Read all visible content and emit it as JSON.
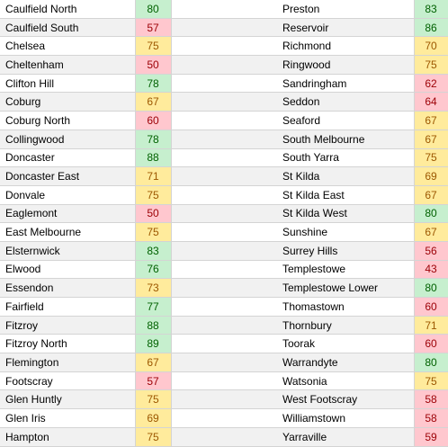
{
  "left": [
    {
      "name": "Caulfield North",
      "score": 80,
      "fill": "#c6efce",
      "ink": "#006100"
    },
    {
      "name": "Caulfield South",
      "score": 57,
      "fill": "#ffc7ce",
      "ink": "#9c0006"
    },
    {
      "name": "Chelsea",
      "score": 75,
      "fill": "#ffeb9c",
      "ink": "#9c5700"
    },
    {
      "name": "Cheltenham",
      "score": 50,
      "fill": "#ffc7ce",
      "ink": "#9c0006"
    },
    {
      "name": "Clifton Hill",
      "score": 78,
      "fill": "#c6efce",
      "ink": "#006100"
    },
    {
      "name": "Coburg",
      "score": 67,
      "fill": "#ffeb9c",
      "ink": "#9c5700"
    },
    {
      "name": "Coburg North",
      "score": 60,
      "fill": "#ffc7ce",
      "ink": "#9c0006"
    },
    {
      "name": "Collingwood",
      "score": 78,
      "fill": "#c6efce",
      "ink": "#006100"
    },
    {
      "name": "Doncaster",
      "score": 88,
      "fill": "#c6efce",
      "ink": "#006100"
    },
    {
      "name": "Doncaster East",
      "score": 71,
      "fill": "#ffeb9c",
      "ink": "#9c5700"
    },
    {
      "name": "Donvale",
      "score": 75,
      "fill": "#ffeb9c",
      "ink": "#9c5700"
    },
    {
      "name": "Eaglemont",
      "score": 50,
      "fill": "#ffc7ce",
      "ink": "#9c0006"
    },
    {
      "name": "East Melbourne",
      "score": 75,
      "fill": "#ffeb9c",
      "ink": "#9c5700"
    },
    {
      "name": "Elsternwick",
      "score": 83,
      "fill": "#c6efce",
      "ink": "#006100"
    },
    {
      "name": "Elwood",
      "score": 76,
      "fill": "#c6efce",
      "ink": "#006100"
    },
    {
      "name": "Essendon",
      "score": 73,
      "fill": "#ffeb9c",
      "ink": "#9c5700"
    },
    {
      "name": "Fairfield",
      "score": 77,
      "fill": "#c6efce",
      "ink": "#006100"
    },
    {
      "name": "Fitzroy",
      "score": 88,
      "fill": "#c6efce",
      "ink": "#006100"
    },
    {
      "name": "Fitzroy North",
      "score": 89,
      "fill": "#c6efce",
      "ink": "#006100"
    },
    {
      "name": "Flemington",
      "score": 67,
      "fill": "#ffeb9c",
      "ink": "#9c5700"
    },
    {
      "name": "Footscray",
      "score": 57,
      "fill": "#ffc7ce",
      "ink": "#9c0006"
    },
    {
      "name": "Glen Huntly",
      "score": 75,
      "fill": "#ffeb9c",
      "ink": "#9c5700"
    },
    {
      "name": "Glen Iris",
      "score": 69,
      "fill": "#ffeb9c",
      "ink": "#9c5700"
    },
    {
      "name": "Hampton",
      "score": 75,
      "fill": "#ffeb9c",
      "ink": "#9c5700"
    }
  ],
  "right": [
    {
      "name": "Preston",
      "score": 83,
      "fill": "#c6efce",
      "ink": "#006100"
    },
    {
      "name": "Reservoir",
      "score": 86,
      "fill": "#c6efce",
      "ink": "#006100"
    },
    {
      "name": "Richmond",
      "score": 70,
      "fill": "#ffeb9c",
      "ink": "#9c5700"
    },
    {
      "name": "Ringwood",
      "score": 75,
      "fill": "#ffeb9c",
      "ink": "#9c5700"
    },
    {
      "name": "Sandringham",
      "score": 62,
      "fill": "#ffc7ce",
      "ink": "#9c0006"
    },
    {
      "name": "Seddon",
      "score": 64,
      "fill": "#ffc7ce",
      "ink": "#9c0006"
    },
    {
      "name": "Seaford",
      "score": 67,
      "fill": "#ffeb9c",
      "ink": "#9c5700"
    },
    {
      "name": "South Melbourne",
      "score": 67,
      "fill": "#ffeb9c",
      "ink": "#9c5700"
    },
    {
      "name": "South Yarra",
      "score": 75,
      "fill": "#ffeb9c",
      "ink": "#9c5700"
    },
    {
      "name": "St Kilda",
      "score": 69,
      "fill": "#ffeb9c",
      "ink": "#9c5700"
    },
    {
      "name": "St Kilda East",
      "score": 67,
      "fill": "#ffeb9c",
      "ink": "#9c5700"
    },
    {
      "name": "St Kilda West",
      "score": 80,
      "fill": "#c6efce",
      "ink": "#006100"
    },
    {
      "name": "Sunshine",
      "score": 67,
      "fill": "#ffeb9c",
      "ink": "#9c5700"
    },
    {
      "name": "Surrey Hills",
      "score": 56,
      "fill": "#ffc7ce",
      "ink": "#9c0006"
    },
    {
      "name": "Templestowe",
      "score": 43,
      "fill": "#ffc7ce",
      "ink": "#9c0006"
    },
    {
      "name": "Templestowe Lower",
      "score": 80,
      "fill": "#c6efce",
      "ink": "#006100"
    },
    {
      "name": "Thomastown",
      "score": 60,
      "fill": "#ffc7ce",
      "ink": "#9c0006"
    },
    {
      "name": "Thornbury",
      "score": 71,
      "fill": "#ffeb9c",
      "ink": "#9c5700"
    },
    {
      "name": "Toorak",
      "score": 60,
      "fill": "#ffc7ce",
      "ink": "#9c0006"
    },
    {
      "name": "Warrandyte",
      "score": 80,
      "fill": "#c6efce",
      "ink": "#006100"
    },
    {
      "name": "Watsonia",
      "score": 75,
      "fill": "#ffeb9c",
      "ink": "#9c5700"
    },
    {
      "name": "West Footscray",
      "score": 58,
      "fill": "#ffc7ce",
      "ink": "#9c0006"
    },
    {
      "name": "Williamstown",
      "score": 58,
      "fill": "#ffc7ce",
      "ink": "#9c0006"
    },
    {
      "name": "Yarraville",
      "score": 59,
      "fill": "#ffc7ce",
      "ink": "#9c0006"
    }
  ]
}
